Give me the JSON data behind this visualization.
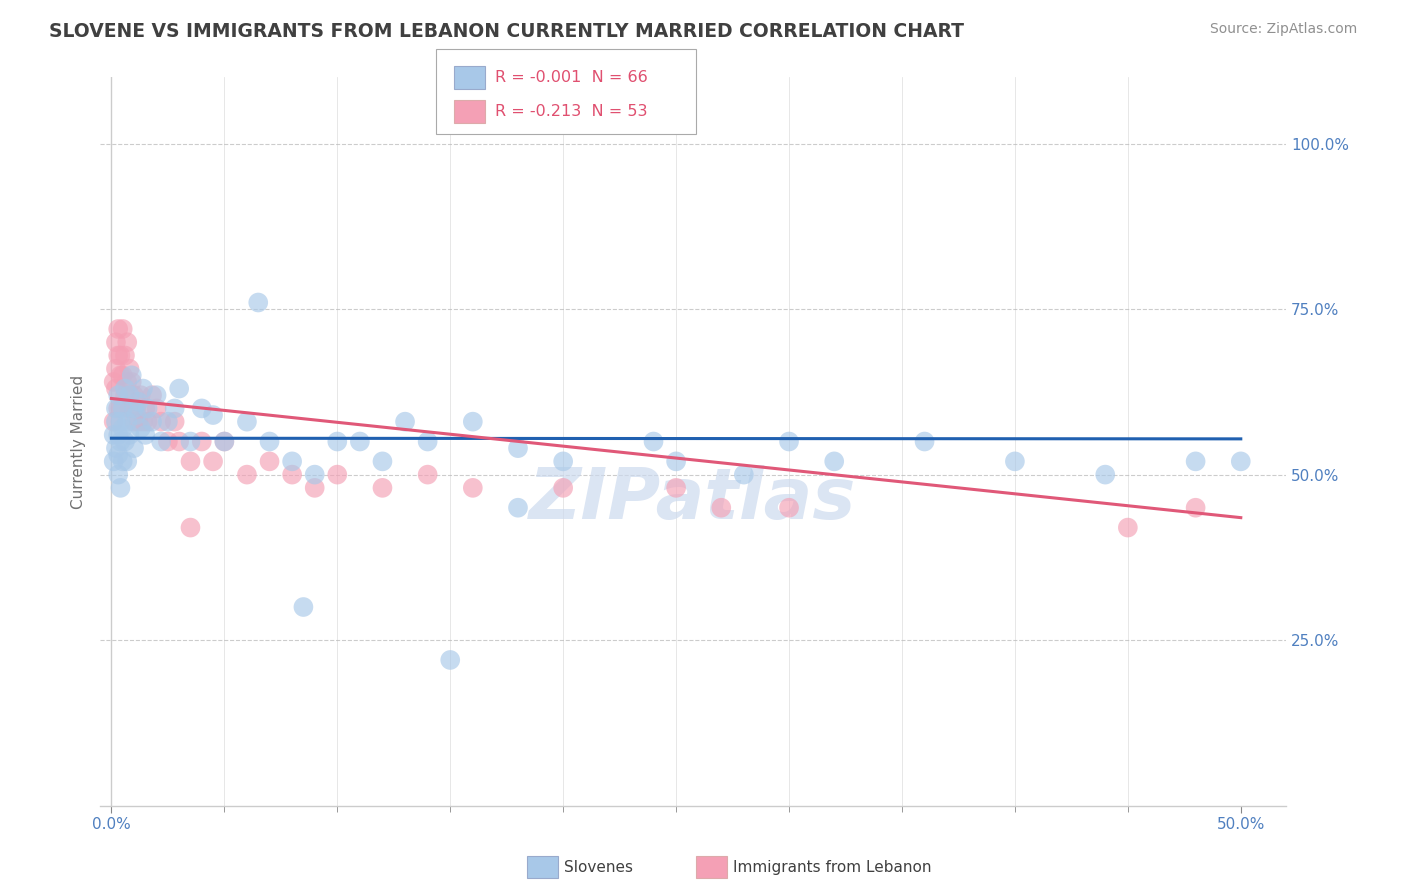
{
  "title": "SLOVENE VS IMMIGRANTS FROM LEBANON CURRENTLY MARRIED CORRELATION CHART",
  "source_text": "Source: ZipAtlas.com",
  "ylabel": "Currently Married",
  "legend_series": [
    {
      "label": "Slovenes",
      "color": "#a8c8e8",
      "R": "-0.001",
      "N": "66"
    },
    {
      "label": "Immigrants from Lebanon",
      "color": "#f4a0b5",
      "R": "-0.213",
      "N": "53"
    }
  ],
  "x_tick_labels_shown": [
    "0.0%",
    "50.0%"
  ],
  "x_tick_positions_shown": [
    0.0,
    0.5
  ],
  "x_minor_ticks": [
    0.05,
    0.1,
    0.15,
    0.2,
    0.25,
    0.3,
    0.35,
    0.4,
    0.45
  ],
  "y_ticks": [
    0.25,
    0.5,
    0.75,
    1.0
  ],
  "y_tick_labels": [
    "25.0%",
    "50.0%",
    "75.0%",
    "100.0%"
  ],
  "xlim": [
    -0.005,
    0.52
  ],
  "ylim": [
    0.0,
    1.1
  ],
  "grid_color": "#cccccc",
  "background_color": "#ffffff",
  "title_color": "#404040",
  "source_color": "#909090",
  "blue_color": "#a8c8e8",
  "pink_color": "#f4a0b5",
  "blue_line_color": "#2060b0",
  "pink_line_color": "#e05878",
  "tick_color": "#5080c0",
  "blue_scatter_x": [
    0.001,
    0.001,
    0.002,
    0.002,
    0.002,
    0.003,
    0.003,
    0.003,
    0.003,
    0.004,
    0.004,
    0.004,
    0.005,
    0.005,
    0.005,
    0.006,
    0.006,
    0.007,
    0.007,
    0.008,
    0.008,
    0.009,
    0.01,
    0.01,
    0.011,
    0.012,
    0.013,
    0.014,
    0.015,
    0.016,
    0.018,
    0.02,
    0.022,
    0.025,
    0.028,
    0.03,
    0.035,
    0.04,
    0.045,
    0.05,
    0.06,
    0.07,
    0.08,
    0.09,
    0.1,
    0.12,
    0.14,
    0.16,
    0.18,
    0.2,
    0.24,
    0.28,
    0.32,
    0.36,
    0.4,
    0.44,
    0.48,
    0.5,
    0.3,
    0.25,
    0.18,
    0.15,
    0.13,
    0.11,
    0.085,
    0.065
  ],
  "blue_scatter_y": [
    0.56,
    0.52,
    0.58,
    0.54,
    0.6,
    0.56,
    0.53,
    0.5,
    0.62,
    0.58,
    0.55,
    0.48,
    0.6,
    0.57,
    0.52,
    0.63,
    0.55,
    0.58,
    0.52,
    0.62,
    0.56,
    0.65,
    0.6,
    0.54,
    0.59,
    0.61,
    0.57,
    0.63,
    0.56,
    0.6,
    0.58,
    0.62,
    0.55,
    0.58,
    0.6,
    0.63,
    0.55,
    0.6,
    0.59,
    0.55,
    0.58,
    0.55,
    0.52,
    0.5,
    0.55,
    0.52,
    0.55,
    0.58,
    0.54,
    0.52,
    0.55,
    0.5,
    0.52,
    0.55,
    0.52,
    0.5,
    0.52,
    0.52,
    0.55,
    0.52,
    0.45,
    0.22,
    0.58,
    0.55,
    0.3,
    0.76
  ],
  "pink_scatter_x": [
    0.001,
    0.001,
    0.002,
    0.002,
    0.002,
    0.003,
    0.003,
    0.003,
    0.004,
    0.004,
    0.004,
    0.005,
    0.005,
    0.006,
    0.006,
    0.007,
    0.007,
    0.008,
    0.008,
    0.009,
    0.01,
    0.01,
    0.011,
    0.012,
    0.013,
    0.014,
    0.015,
    0.016,
    0.018,
    0.02,
    0.022,
    0.025,
    0.028,
    0.03,
    0.035,
    0.04,
    0.045,
    0.05,
    0.06,
    0.07,
    0.08,
    0.09,
    0.1,
    0.12,
    0.14,
    0.16,
    0.2,
    0.25,
    0.3,
    0.45,
    0.48,
    0.27,
    0.035
  ],
  "pink_scatter_y": [
    0.64,
    0.58,
    0.7,
    0.63,
    0.66,
    0.68,
    0.6,
    0.72,
    0.65,
    0.6,
    0.68,
    0.72,
    0.65,
    0.68,
    0.62,
    0.7,
    0.64,
    0.66,
    0.6,
    0.64,
    0.62,
    0.58,
    0.6,
    0.58,
    0.62,
    0.58,
    0.6,
    0.58,
    0.62,
    0.6,
    0.58,
    0.55,
    0.58,
    0.55,
    0.52,
    0.55,
    0.52,
    0.55,
    0.5,
    0.52,
    0.5,
    0.48,
    0.5,
    0.48,
    0.5,
    0.48,
    0.48,
    0.48,
    0.45,
    0.42,
    0.45,
    0.45,
    0.42
  ],
  "blue_trend_x": [
    0.0,
    0.5
  ],
  "blue_trend_y": [
    0.555,
    0.554
  ],
  "pink_trend_x": [
    0.0,
    0.5
  ],
  "pink_trend_y": [
    0.615,
    0.435
  ],
  "watermark": "ZIPatlas",
  "watermark_color": "#ccdaee",
  "legend_R_color": "#e05070",
  "legend_N_color": "#3060a0"
}
